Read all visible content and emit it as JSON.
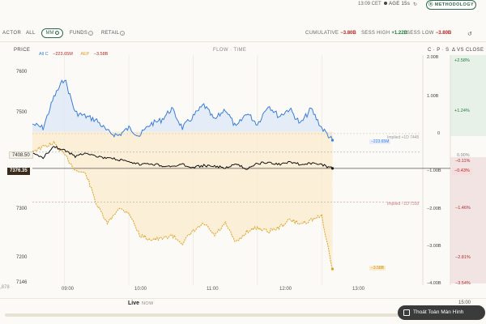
{
  "topbar": {
    "time": "13:09 CET",
    "age_label": "AGE",
    "age_value": "15s",
    "refresh_icon": "refresh-icon",
    "methodology_label": "METHODOLOGY"
  },
  "filters": {
    "label": "ACTOR",
    "options": [
      "ALL",
      "MM",
      "FUNDS",
      "RETAIL"
    ],
    "selected": "MM"
  },
  "stats": {
    "cumulative_label": "CUMULATIVE",
    "cumulative_value": "−3.80B",
    "sess_high_label": "SESS HIGH",
    "sess_high_value": "+1.22B",
    "sess_low_label": "SESS LOW",
    "sess_low_value": "−3.80B"
  },
  "chart_labels": {
    "price_axis_title": "PRICE",
    "center_title": "FLOW · TIME",
    "cps_title": "C · P · S",
    "vs_close_title": "Δ VS CLOSE",
    "left_edge_tick": ",878"
  },
  "legend": [
    {
      "name": "All C",
      "value": "−223.65M",
      "color": "#3b7dd8"
    },
    {
      "name": "AEP",
      "value": "−3.58B",
      "color": "#e0a020"
    }
  ],
  "price_ticks": [
    "7600",
    "7500",
    "7400",
    "7300",
    "7200",
    "7146"
  ],
  "cps_ticks": [
    "2.00B",
    "1.00B",
    "0",
    "−1.00B",
    "−2.00B",
    "−3.00B",
    "−4.00B"
  ],
  "pct_ticks": [
    "+2.58%",
    "+1.24%",
    "0.00%",
    "−0.11%",
    "−0.43%",
    "−1.46%",
    "−2.81%",
    "−3.54%"
  ],
  "time_ticks": [
    "09:00",
    "10:00",
    "11:00",
    "12:00",
    "13:00"
  ],
  "annotations": {
    "implied_upper": "Implied +1D 7445",
    "implied_lower": "Implied −1D 7310",
    "blue_end_tag": "−223.65M",
    "orange_end_tag": "−3.58B",
    "prev_close_price": "7408.50",
    "current_price": "7376.35"
  },
  "live": {
    "label": "Live",
    "sub": "NOW",
    "end_time": "15:00"
  },
  "toast": {
    "label": "Thoát Toàn Màn Hình"
  },
  "colors": {
    "accent": "#2e6b4a",
    "blue_series": "#3b7dd8",
    "orange_series": "#e0a020",
    "price_series": "#111111",
    "negative": "#b02a2a",
    "positive": "#1f7a3a"
  },
  "chart_data": {
    "type": "line",
    "x_range": [
      "08:30",
      "15:00"
    ],
    "y_left_range": [
      7146,
      7600
    ],
    "y_right_range": [
      -4.0,
      2.0
    ],
    "y_right_unit": "B",
    "series": [
      {
        "name": "All C",
        "axis": "right",
        "unit": "B",
        "x": [
          "08:30",
          "08:40",
          "08:50",
          "09:00",
          "09:10",
          "09:20",
          "09:30",
          "09:40",
          "09:50",
          "10:00",
          "10:10",
          "10:20",
          "10:30",
          "10:40",
          "10:50",
          "11:00",
          "11:10",
          "11:20",
          "11:30",
          "11:40",
          "11:50",
          "12:00",
          "12:10",
          "12:20",
          "12:30",
          "12:40",
          "12:50",
          "13:00",
          "13:10"
        ],
        "values": [
          0.2,
          0.1,
          0.9,
          1.4,
          0.5,
          0.4,
          0.3,
          0.0,
          -0.1,
          0.1,
          -0.1,
          0.2,
          0.3,
          0.6,
          0.1,
          0.4,
          0.7,
          0.3,
          0.6,
          0.1,
          0.5,
          0.2,
          0.7,
          0.4,
          0.6,
          0.2,
          0.6,
          0.1,
          -0.22
        ]
      },
      {
        "name": "AEP",
        "axis": "right",
        "unit": "B",
        "x": [
          "08:30",
          "08:40",
          "08:50",
          "09:00",
          "09:10",
          "09:20",
          "09:30",
          "09:40",
          "09:50",
          "10:00",
          "10:10",
          "10:20",
          "10:30",
          "10:40",
          "10:50",
          "11:00",
          "11:10",
          "11:20",
          "11:30",
          "11:40",
          "11:50",
          "12:00",
          "12:10",
          "12:20",
          "12:30",
          "12:40",
          "12:50",
          "13:00",
          "13:10"
        ],
        "values": [
          -0.5,
          -0.4,
          -0.3,
          -0.6,
          -1.0,
          -1.1,
          -1.9,
          -2.4,
          -2.0,
          -2.1,
          -2.7,
          -2.8,
          -2.8,
          -2.7,
          -2.9,
          -2.6,
          -2.4,
          -2.7,
          -2.4,
          -2.9,
          -2.6,
          -2.5,
          -2.6,
          -2.5,
          -2.3,
          -2.4,
          -2.3,
          -2.2,
          -3.58
        ]
      },
      {
        "name": "Price",
        "axis": "left",
        "x": [
          "08:30",
          "08:40",
          "08:50",
          "09:00",
          "09:10",
          "09:20",
          "09:30",
          "09:40",
          "09:50",
          "10:00",
          "10:10",
          "10:20",
          "10:30",
          "10:40",
          "10:50",
          "11:00",
          "11:10",
          "11:20",
          "11:30",
          "11:40",
          "11:50",
          "12:00",
          "12:10",
          "12:20",
          "12:30",
          "12:40",
          "12:50",
          "13:00",
          "13:10"
        ],
        "values": [
          7405,
          7398,
          7420,
          7412,
          7400,
          7408,
          7400,
          7396,
          7394,
          7388,
          7384,
          7386,
          7382,
          7380,
          7384,
          7378,
          7382,
          7380,
          7378,
          7384,
          7376,
          7386,
          7388,
          7384,
          7390,
          7384,
          7386,
          7384,
          7376.35
        ]
      }
    ],
    "reference_lines": [
      {
        "label": "Implied +1D",
        "value": 7445
      },
      {
        "label": "Implied −1D",
        "value": 7310
      }
    ]
  }
}
